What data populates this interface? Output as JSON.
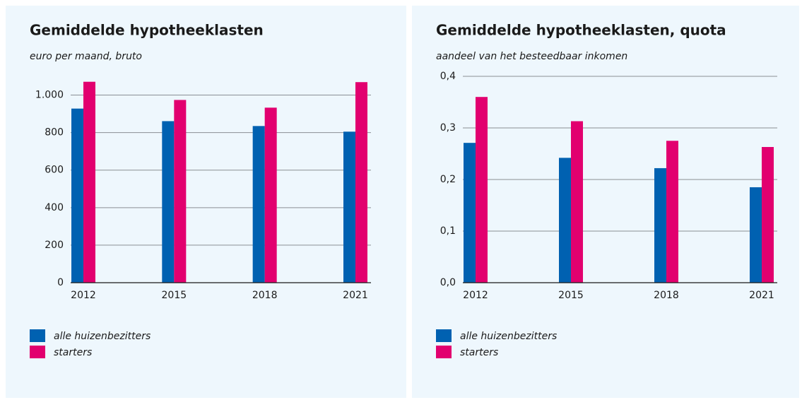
{
  "chart_data": [
    {
      "type": "bar",
      "title": "Gemiddelde hypotheeklasten",
      "subtitle": "euro per maand, bruto",
      "categories": [
        "2012",
        "2015",
        "2018",
        "2021"
      ],
      "series": [
        {
          "name": "alle huizenbezitters",
          "color": "#0061b1",
          "values": [
            928,
            861,
            835,
            805
          ]
        },
        {
          "name": "starters",
          "color": "#e2006f",
          "values": [
            1071,
            974,
            933,
            1069
          ]
        }
      ],
      "ylim": [
        0,
        1100
      ],
      "yticks": [
        0,
        200,
        400,
        600,
        800,
        {
          "value": 1000,
          "label": "1.000"
        }
      ],
      "grid": true
    },
    {
      "type": "bar",
      "title": "Gemiddelde hypotheeklasten, quota",
      "subtitle": "aandeel van het besteedbaar inkomen",
      "categories": [
        "2012",
        "2015",
        "2018",
        "2021"
      ],
      "series": [
        {
          "name": "alle huizenbezitters",
          "color": "#0061b1",
          "values": [
            0.271,
            0.242,
            0.222,
            0.185
          ]
        },
        {
          "name": "starters",
          "color": "#e2006f",
          "values": [
            0.36,
            0.313,
            0.275,
            0.263
          ]
        }
      ],
      "ylim": [
        0,
        0.4
      ],
      "yticks": [
        {
          "value": 0,
          "label": "0,0"
        },
        {
          "value": 0.1,
          "label": "0,1"
        },
        {
          "value": 0.2,
          "label": "0,2"
        },
        {
          "value": 0.3,
          "label": "0,3"
        },
        {
          "value": 0.4,
          "label": "0,4"
        }
      ],
      "grid": true
    }
  ]
}
